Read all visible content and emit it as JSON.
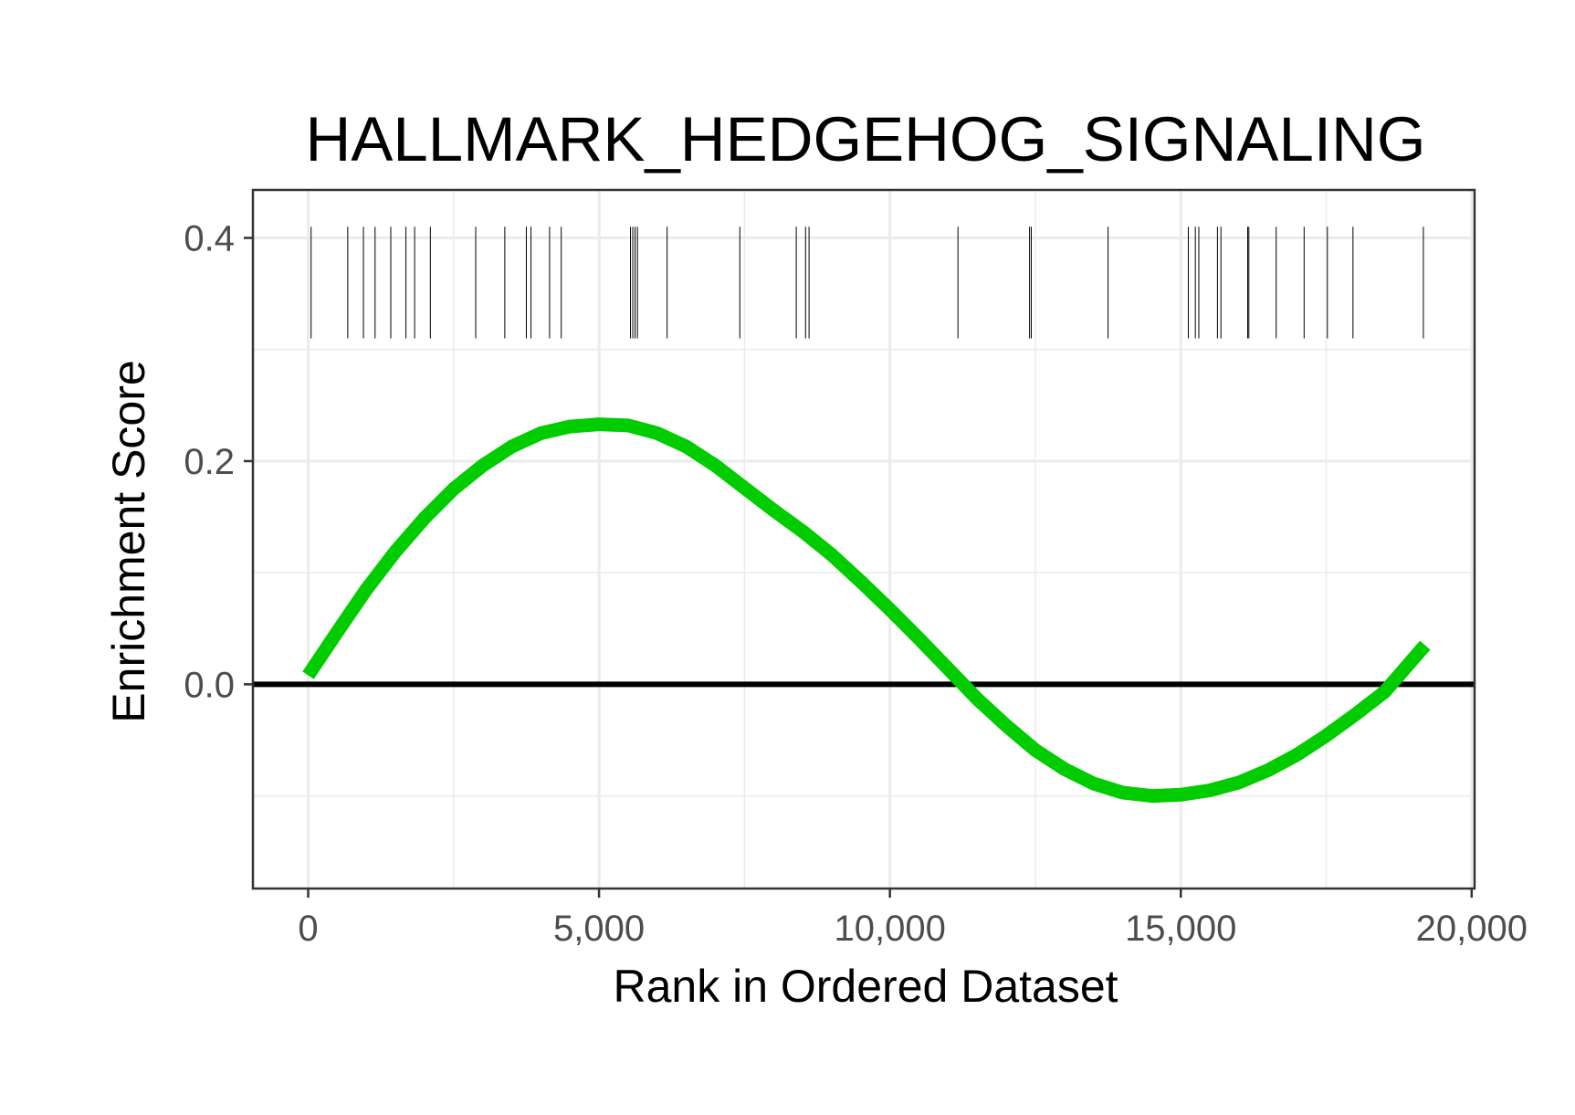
{
  "chart_data": {
    "type": "line",
    "title": "HALLMARK_HEDGEHOG_SIGNALING",
    "xlabel": "Rank in Ordered Dataset",
    "ylabel": "Enrichment Score",
    "xlim": [
      -950,
      20050
    ],
    "ylim": [
      -0.183,
      0.443
    ],
    "x_ticks": [
      0,
      5000,
      10000,
      15000,
      20000
    ],
    "x_tick_labels": [
      "0",
      "5,000",
      "10,000",
      "15,000",
      "20,000"
    ],
    "y_ticks": [
      0.0,
      0.2,
      0.4
    ],
    "y_tick_labels": [
      "0.0",
      "0.2",
      "0.4"
    ],
    "y_minor_grid": [
      -0.1,
      0.1,
      0.3
    ],
    "x_minor_grid": [
      2500,
      7500,
      12500,
      17500
    ],
    "grid": true,
    "legend": "none",
    "reference_line": {
      "y": 0.0,
      "color": "#000000"
    },
    "series": [
      {
        "color": "#00cc00",
        "x": [
          0,
          500,
          1000,
          1500,
          2000,
          2500,
          3000,
          3500,
          4000,
          4500,
          5000,
          5500,
          6000,
          6500,
          7000,
          7500,
          8000,
          8500,
          9000,
          9500,
          10000,
          10500,
          11000,
          11500,
          12000,
          12500,
          13000,
          13500,
          14000,
          14500,
          15000,
          15500,
          16000,
          16500,
          17000,
          17500,
          18000,
          18500,
          19200
        ],
        "y": [
          0.008,
          0.047,
          0.085,
          0.119,
          0.149,
          0.175,
          0.196,
          0.213,
          0.225,
          0.231,
          0.233,
          0.232,
          0.225,
          0.213,
          0.196,
          0.176,
          0.156,
          0.137,
          0.116,
          0.092,
          0.067,
          0.041,
          0.014,
          -0.013,
          -0.037,
          -0.059,
          -0.076,
          -0.089,
          -0.097,
          -0.1,
          -0.099,
          -0.095,
          -0.088,
          -0.077,
          -0.063,
          -0.046,
          -0.027,
          -0.007,
          0.035
        ]
      }
    ],
    "gene_hits": [
      50,
      680,
      950,
      1150,
      1420,
      1680,
      1830,
      2100,
      2880,
      3380,
      3750,
      3830,
      4150,
      4350,
      5540,
      5580,
      5620,
      5660,
      6170,
      7420,
      8390,
      8550,
      8610,
      11170,
      12400,
      12430,
      13750,
      15130,
      15250,
      15310,
      15630,
      15690,
      16150,
      16170,
      16640,
      17120,
      17520,
      17960,
      19170
    ],
    "hit_band": [
      0.31,
      0.41
    ]
  }
}
